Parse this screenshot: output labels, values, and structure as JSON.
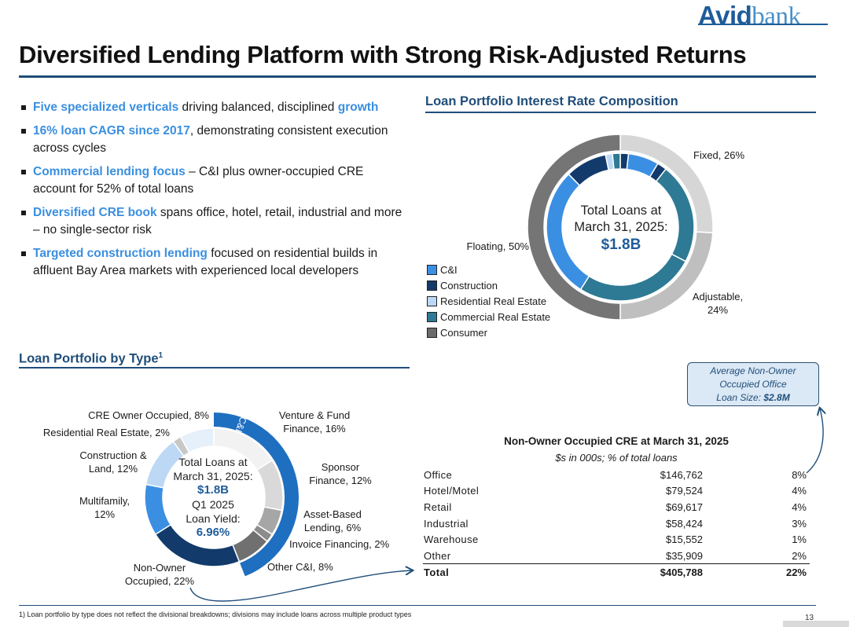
{
  "logo": {
    "part1": "Avid",
    "part2": "bank"
  },
  "title": "Diversified Lending Platform with Strong Risk-Adjusted Returns",
  "bullets": [
    {
      "hl1": "Five specialized verticals",
      "t1": " driving balanced, disciplined ",
      "hl2": "growth",
      "t2": ""
    },
    {
      "hl1": "16% loan CAGR since 2017",
      "t1": ", demonstrating consistent execution across cycles",
      "hl2": "",
      "t2": ""
    },
    {
      "hl1": "Commercial lending focus",
      "t1": " – C&I plus owner-occupied CRE account for 52% of total loans",
      "hl2": "",
      "t2": ""
    },
    {
      "hl1": "Diversified CRE book",
      "t1": " spans office, hotel, retail, industrial and more – no single-sector risk",
      "hl2": "",
      "t2": ""
    },
    {
      "hl1": "Targeted construction lending",
      "t1": " focused on residential builds in affluent Bay Area markets with experienced local developers",
      "hl2": "",
      "t2": ""
    }
  ],
  "rate_section": {
    "title": "Loan Portfolio Interest Rate Composition",
    "center_line1": "Total Loans at",
    "center_line2": "March 31, 2025:",
    "center_value": "$1.8B",
    "label_fixed": "Fixed, 26%",
    "label_floating": "Floating, 50%",
    "label_adjustable_1": "Adjustable,",
    "label_adjustable_2": "24%"
  },
  "type_section": {
    "title": "Loan Portfolio by Type",
    "title_sup": "1",
    "center_line1": "Total Loans at",
    "center_line2": "March 31, 2025:",
    "center_value": "$1.8B",
    "center_line3": "Q1 2025",
    "center_line4": "Loan Yield:",
    "center_yield": "6.96%",
    "ci_label": "C&I"
  },
  "callout": {
    "line1": "Average Non-Owner",
    "line2": "Occupied Office",
    "line3_prefix": "Loan Size: ",
    "line3_value": "$2.8M"
  },
  "table": {
    "title": "Non-Owner Occupied CRE at March 31, 2025",
    "subtitle": "$s in 000s; % of total loans",
    "rows": [
      {
        "name": "Office",
        "amount": "$146,762",
        "pct": "8%"
      },
      {
        "name": "Hotel/Motel",
        "amount": "$79,524",
        "pct": "4%"
      },
      {
        "name": "Retail",
        "amount": "$69,617",
        "pct": "4%"
      },
      {
        "name": "Industrial",
        "amount": "$58,424",
        "pct": "3%"
      },
      {
        "name": "Warehouse",
        "amount": "$15,552",
        "pct": "1%"
      },
      {
        "name": "Other",
        "amount": "$35,909",
        "pct": "2%"
      }
    ],
    "total": {
      "name": "Total",
      "amount": "$405,788",
      "pct": "22%"
    }
  },
  "footnote": "1)    Loan portfolio by type does not reflect the divisional breakdowns; divisions may include loans across multiple product types",
  "page_number": "13",
  "colors": {
    "navy": "#1f4e79",
    "ci": "#3b8fe3",
    "construction": "#123a6b",
    "residential": "#bcd8f5",
    "commercial": "#2e7a94",
    "consumer": "#6b6b6b"
  },
  "chart_data": [
    {
      "type": "pie",
      "variant": "nested-donut",
      "title": "Loan Portfolio Interest Rate Composition",
      "outer_ring": {
        "categories": [
          "Fixed",
          "Adjustable",
          "Floating"
        ],
        "values": [
          26,
          24,
          50
        ],
        "colors": [
          "#d6d6d6",
          "#bfbfbf",
          "#757575"
        ]
      },
      "inner_ring": {
        "legend": [
          "C&I",
          "Construction",
          "Residential Real Estate",
          "Commercial Real Estate",
          "Consumer"
        ],
        "segments": [
          {
            "category": "Construction",
            "value": 1.8
          },
          {
            "category": "C&I",
            "value": 6.7
          },
          {
            "category": "Construction",
            "value": 2.1
          },
          {
            "category": "Commercial Real Estate",
            "value": 22.1
          },
          {
            "category": "Commercial Real Estate",
            "value": 26.3
          },
          {
            "category": "C&I",
            "value": 28.7
          },
          {
            "category": "Construction",
            "value": 9.1
          },
          {
            "category": "Residential Real Estate",
            "value": 1.5
          },
          {
            "category": "Commercial Real Estate",
            "value": 1.7
          }
        ]
      },
      "legend_position": "bottom-left"
    },
    {
      "type": "pie",
      "variant": "donut",
      "title": "Loan Portfolio by Type",
      "categories": [
        "Venture & Fund Finance",
        "Sponsor Finance",
        "Asset-Based Lending",
        "Invoice Financing",
        "Other C&I",
        "Non-Owner Occupied",
        "Multifamily",
        "Construction & Land",
        "Residential Real Estate",
        "CRE Owner Occupied"
      ],
      "labels": [
        "Venture & Fund Finance, 16%",
        "Sponsor Finance, 12%",
        "Asset-Based Lending, 6%",
        "Invoice Financing, 2%",
        "Other C&I, 8%",
        "Non-Owner Occupied, 22%",
        "Multifamily, 12%",
        "Construction & Land, 12%",
        "Residential Real Estate, 2%",
        "CRE Owner Occupied, 8%"
      ],
      "values": [
        16,
        12,
        6,
        2,
        8,
        22,
        12,
        12,
        2,
        8
      ],
      "colors": [
        "#f2f2f2",
        "#d9d9d9",
        "#a6a6a6",
        "#8c8c8c",
        "#707070",
        "#123a6b",
        "#3b8fe3",
        "#bcd8f5",
        "#c8c8c8",
        "#e6f0fa"
      ],
      "group_arc": {
        "label": "C&I",
        "start_pct": 0,
        "end_pct": 44,
        "color": "#1f6fc0"
      }
    }
  ]
}
